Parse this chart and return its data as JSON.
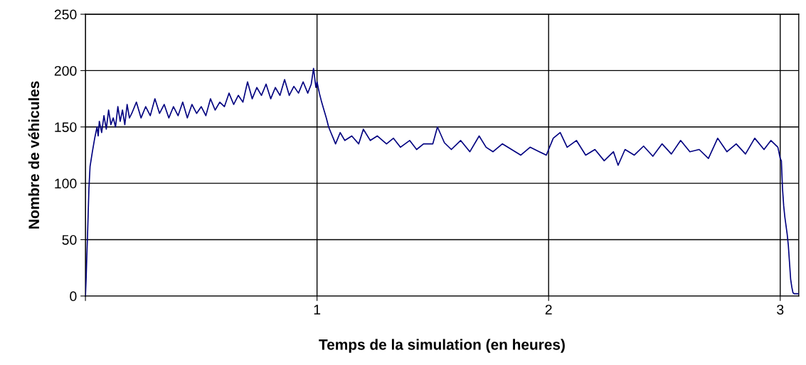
{
  "chart_data": {
    "type": "line",
    "xlabel": "Temps de la simulation (en heures)",
    "ylabel": "Nombre de véhicules",
    "xlim": [
      0,
      3.08
    ],
    "ylim": [
      0,
      250
    ],
    "xticks": [
      {
        "value": 0,
        "label": null
      },
      1,
      2,
      3
    ],
    "yticks": [
      0,
      50,
      100,
      150,
      200,
      250
    ],
    "grid": true,
    "marker": "none",
    "line_style": "solid",
    "series": [
      {
        "color": "#000080",
        "x": [
          0,
          0.003,
          0.006,
          0.01,
          0.015,
          0.02,
          0.03,
          0.04,
          0.05,
          0.055,
          0.06,
          0.07,
          0.08,
          0.09,
          0.1,
          0.11,
          0.12,
          0.13,
          0.14,
          0.15,
          0.16,
          0.17,
          0.18,
          0.19,
          0.2,
          0.22,
          0.24,
          0.26,
          0.28,
          0.3,
          0.32,
          0.34,
          0.36,
          0.38,
          0.4,
          0.42,
          0.44,
          0.46,
          0.48,
          0.5,
          0.52,
          0.54,
          0.56,
          0.58,
          0.6,
          0.62,
          0.64,
          0.66,
          0.68,
          0.7,
          0.72,
          0.74,
          0.76,
          0.78,
          0.8,
          0.82,
          0.84,
          0.86,
          0.88,
          0.9,
          0.92,
          0.94,
          0.96,
          0.975,
          0.985,
          0.995,
          1.0,
          1.01,
          1.02,
          1.03,
          1.04,
          1.05,
          1.06,
          1.07,
          1.08,
          1.1,
          1.12,
          1.15,
          1.18,
          1.2,
          1.23,
          1.26,
          1.3,
          1.33,
          1.36,
          1.4,
          1.43,
          1.46,
          1.5,
          1.52,
          1.55,
          1.58,
          1.62,
          1.66,
          1.7,
          1.73,
          1.76,
          1.8,
          1.84,
          1.88,
          1.92,
          1.96,
          1.99,
          2.02,
          2.05,
          2.08,
          2.12,
          2.16,
          2.2,
          2.24,
          2.28,
          2.3,
          2.33,
          2.37,
          2.41,
          2.45,
          2.49,
          2.53,
          2.57,
          2.61,
          2.65,
          2.69,
          2.73,
          2.77,
          2.81,
          2.85,
          2.89,
          2.93,
          2.96,
          2.99,
          3.0,
          3.005,
          3.01,
          3.015,
          3.02,
          3.03,
          3.035,
          3.04,
          3.045,
          3.05,
          3.055,
          3.06,
          3.08
        ],
        "values": [
          0,
          15,
          35,
          60,
          95,
          115,
          128,
          140,
          150,
          142,
          155,
          145,
          160,
          148,
          165,
          152,
          158,
          150,
          168,
          155,
          165,
          152,
          170,
          158,
          162,
          172,
          158,
          168,
          160,
          175,
          162,
          170,
          158,
          168,
          160,
          172,
          158,
          170,
          162,
          168,
          160,
          175,
          165,
          172,
          168,
          180,
          170,
          178,
          172,
          190,
          175,
          185,
          178,
          188,
          175,
          185,
          178,
          192,
          178,
          186,
          180,
          190,
          180,
          188,
          202,
          185,
          190,
          180,
          172,
          165,
          158,
          150,
          145,
          140,
          135,
          145,
          138,
          142,
          135,
          148,
          138,
          142,
          135,
          140,
          132,
          138,
          130,
          135,
          135,
          150,
          136,
          130,
          138,
          128,
          142,
          132,
          128,
          135,
          130,
          125,
          132,
          128,
          125,
          140,
          145,
          132,
          138,
          125,
          130,
          120,
          128,
          116,
          130,
          125,
          133,
          124,
          135,
          126,
          138,
          128,
          130,
          122,
          140,
          128,
          135,
          126,
          140,
          130,
          138,
          132,
          122,
          120,
          95,
          80,
          70,
          55,
          45,
          30,
          15,
          8,
          3,
          2,
          2
        ]
      }
    ]
  }
}
